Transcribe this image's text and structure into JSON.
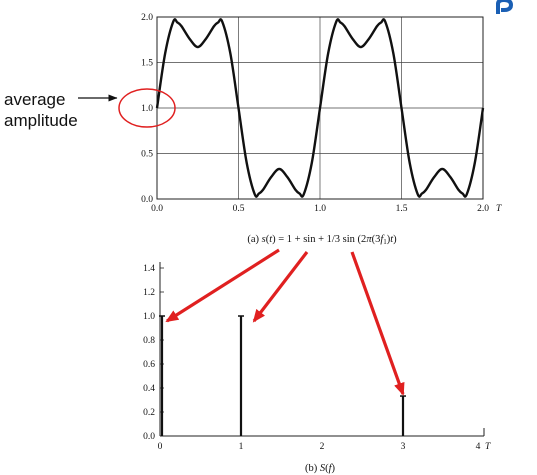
{
  "annotation": {
    "line1": "average",
    "line2": "amplitude",
    "target_value": 1.0,
    "arrow_color": "#e02020",
    "highlight_color": "#e02020"
  },
  "decor": {
    "cut_heading_color": "#1a5fb4"
  },
  "chart_data": [
    {
      "type": "line",
      "caption_parts": {
        "a": "(a) ",
        "b": "s",
        "c": "(",
        "d": "t",
        "e": ") = 1 + sin + 1/3 sin (2",
        "f": "π",
        "g": "(3",
        "h": "f",
        "i": "1",
        "j": ")",
        "k": "t",
        "l": ")"
      },
      "x_ticks": [
        "0.0",
        "0.5",
        "1.0",
        "1.5",
        "2.0"
      ],
      "x_tick_values": [
        0,
        0.5,
        1,
        1.5,
        2
      ],
      "x_unit": "T",
      "y_ticks": [
        "0.0",
        "0.5",
        "1.0",
        "1.5",
        "2.0"
      ],
      "y_tick_values": [
        0,
        0.5,
        1,
        1.5,
        2
      ],
      "xlim": [
        0,
        2
      ],
      "ylim": [
        0,
        2
      ],
      "grid": true,
      "series": [
        {
          "x": [
            0,
            0.05,
            0.1,
            0.125,
            0.15,
            0.2,
            0.25,
            0.3,
            0.35,
            0.375,
            0.4,
            0.45,
            0.5,
            0.55,
            0.6,
            0.625,
            0.65,
            0.7,
            0.75,
            0.8,
            0.85,
            0.875,
            0.9,
            0.95,
            1.0,
            1.05,
            1.1,
            1.125,
            1.15,
            1.2,
            1.25,
            1.3,
            1.35,
            1.375,
            1.4,
            1.45,
            1.5,
            1.55,
            1.6,
            1.625,
            1.65,
            1.7,
            1.75,
            1.8,
            1.85,
            1.875,
            1.9,
            1.95,
            2.0
          ],
          "y": [
            1.0,
            1.6,
            1.95,
            1.94,
            1.9,
            1.76,
            1.67,
            1.76,
            1.9,
            1.94,
            1.95,
            1.6,
            1.0,
            0.4,
            0.05,
            0.06,
            0.1,
            0.24,
            0.33,
            0.24,
            0.1,
            0.06,
            0.05,
            0.4,
            1.0,
            1.6,
            1.95,
            1.94,
            1.9,
            1.76,
            1.67,
            1.76,
            1.9,
            1.94,
            1.95,
            1.6,
            1.0,
            0.4,
            0.05,
            0.06,
            0.1,
            0.24,
            0.33,
            0.24,
            0.1,
            0.06,
            0.05,
            0.4,
            1.0
          ]
        }
      ]
    },
    {
      "type": "bar",
      "caption_parts": {
        "a": "(b) ",
        "b": "S",
        "c": "(",
        "d": "f",
        "e": ")"
      },
      "x_ticks": [
        "0",
        "1",
        "2",
        "3",
        "4"
      ],
      "x_tick_values": [
        0,
        1,
        2,
        3,
        4
      ],
      "x_unit": "T",
      "y_ticks": [
        "0.0",
        "0.2",
        "0.4",
        "0.6",
        "0.8",
        "1.0",
        "1.2",
        "1.4"
      ],
      "y_tick_values": [
        0,
        0.2,
        0.4,
        0.6,
        0.8,
        1.0,
        1.2,
        1.4
      ],
      "xlim": [
        0,
        4
      ],
      "ylim": [
        0,
        1.45
      ],
      "grid": false,
      "lines": [
        {
          "x": 0,
          "value": 1.0
        },
        {
          "x": 1,
          "value": 1.0
        },
        {
          "x": 3,
          "value": 0.333
        }
      ]
    }
  ]
}
